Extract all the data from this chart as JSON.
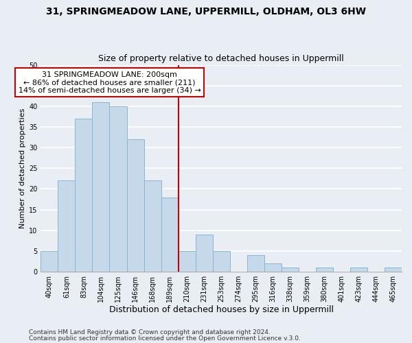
{
  "title": "31, SPRINGMEADOW LANE, UPPERMILL, OLDHAM, OL3 6HW",
  "subtitle": "Size of property relative to detached houses in Uppermill",
  "xlabel": "Distribution of detached houses by size in Uppermill",
  "ylabel": "Number of detached properties",
  "bar_labels": [
    "40sqm",
    "61sqm",
    "83sqm",
    "104sqm",
    "125sqm",
    "146sqm",
    "168sqm",
    "189sqm",
    "210sqm",
    "231sqm",
    "253sqm",
    "274sqm",
    "295sqm",
    "316sqm",
    "338sqm",
    "359sqm",
    "380sqm",
    "401sqm",
    "423sqm",
    "444sqm",
    "465sqm"
  ],
  "bar_heights": [
    5,
    22,
    37,
    41,
    40,
    32,
    22,
    18,
    5,
    9,
    5,
    0,
    4,
    2,
    1,
    0,
    1,
    0,
    1,
    0,
    1
  ],
  "bar_color": "#c6d9ea",
  "bar_edge_color": "#8ab4d0",
  "vline_color": "#cc0000",
  "annotation_text": "31 SPRINGMEADOW LANE: 200sqm\n← 86% of detached houses are smaller (211)\n14% of semi-detached houses are larger (34) →",
  "annotation_box_facecolor": "white",
  "annotation_box_edgecolor": "#cc0000",
  "ylim": [
    0,
    50
  ],
  "yticks": [
    0,
    5,
    10,
    15,
    20,
    25,
    30,
    35,
    40,
    45,
    50
  ],
  "footer1": "Contains HM Land Registry data © Crown copyright and database right 2024.",
  "footer2": "Contains public sector information licensed under the Open Government Licence v.3.0.",
  "background_color": "#e8eef4",
  "grid_color": "white",
  "title_fontsize": 10,
  "subtitle_fontsize": 9,
  "xlabel_fontsize": 9,
  "ylabel_fontsize": 8,
  "tick_fontsize": 7,
  "annotation_fontsize": 8,
  "footer_fontsize": 6.5
}
